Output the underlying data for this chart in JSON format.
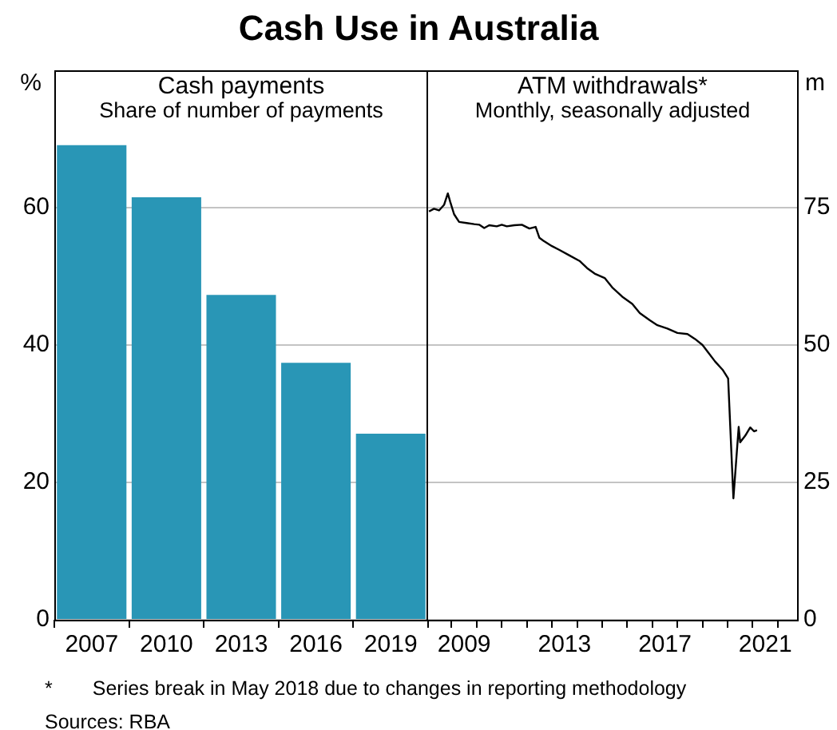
{
  "chart_data": [
    {
      "type": "bar",
      "title": "Cash payments",
      "subtitle": "Share of number of payments",
      "ylabel": "%",
      "annotations": [
        "Cash Use in Australia"
      ],
      "categories": [
        "2007",
        "2010",
        "2013",
        "2016",
        "2019"
      ],
      "values": [
        69.1,
        61.5,
        47.3,
        37.4,
        27.1
      ],
      "color": "#2996b6",
      "ylim": [
        0,
        80
      ],
      "yticks": [
        0,
        20,
        40,
        60
      ],
      "grid": "y"
    },
    {
      "type": "line",
      "title": "ATM withdrawals*",
      "subtitle": "Monthly, seasonally adjusted",
      "ylabel": "m",
      "annotations": [
        "*  Series break in May 2018 due to changes in reporting methodology",
        "Sources: RBA"
      ],
      "series": [
        {
          "color": "#000000",
          "x": [
            2008.1,
            2008.3,
            2008.5,
            2008.7,
            2008.85,
            2008.95,
            2009.1,
            2009.3,
            2009.6,
            2009.9,
            2010.1,
            2010.3,
            2010.5,
            2010.8,
            2011.0,
            2011.2,
            2011.5,
            2011.8,
            2012.1,
            2012.35,
            2012.5,
            2012.65,
            2013.0,
            2013.3,
            2013.7,
            2014.1,
            2014.4,
            2014.7,
            2015.1,
            2015.4,
            2015.8,
            2016.2,
            2016.5,
            2016.9,
            2017.2,
            2017.6,
            2018.0,
            2018.4,
            2018.7,
            2019.0,
            2019.2,
            2019.5,
            2019.8,
            2020.02,
            2020.23,
            2020.44,
            2020.5,
            2020.7,
            2020.9,
            2021.05,
            2021.17
          ],
          "values": [
            74.3,
            74.8,
            74.5,
            75.5,
            77.6,
            76.0,
            73.8,
            72.4,
            72.2,
            72.0,
            71.9,
            71.3,
            71.8,
            71.6,
            71.9,
            71.6,
            71.8,
            71.9,
            71.2,
            71.5,
            69.5,
            69.0,
            68.0,
            67.3,
            66.3,
            65.3,
            64.0,
            63.0,
            62.2,
            60.5,
            58.8,
            57.5,
            55.8,
            54.5,
            53.6,
            53.0,
            52.2,
            52.0,
            51.1,
            50.0,
            48.8,
            47.0,
            45.5,
            43.9,
            22.1,
            35.1,
            32.3,
            33.5,
            35.0,
            34.3,
            34.5
          ]
        }
      ],
      "xlim": [
        2008,
        2022.83
      ],
      "xticks": [
        {
          "value": 2009,
          "label": null
        },
        {
          "value": 2009.5,
          "label": "2009"
        },
        {
          "value": 2010,
          "label": null
        },
        {
          "value": 2011,
          "label": null
        },
        {
          "value": 2012,
          "label": null
        },
        {
          "value": 2013,
          "label": null
        },
        {
          "value": 2013.5,
          "label": "2013"
        },
        {
          "value": 2014,
          "label": null
        },
        {
          "value": 2015,
          "label": null
        },
        {
          "value": 2016,
          "label": null
        },
        {
          "value": 2017,
          "label": null
        },
        {
          "value": 2017.5,
          "label": "2017"
        },
        {
          "value": 2018,
          "label": null
        },
        {
          "value": 2019,
          "label": null
        },
        {
          "value": 2020,
          "label": null
        },
        {
          "value": 2021,
          "label": null
        },
        {
          "value": 2021.5,
          "label": "2021"
        },
        {
          "value": 2022,
          "label": null
        }
      ],
      "ylim": [
        0,
        100
      ],
      "yticks": [
        0,
        25,
        50,
        75
      ],
      "grid": "y"
    }
  ]
}
